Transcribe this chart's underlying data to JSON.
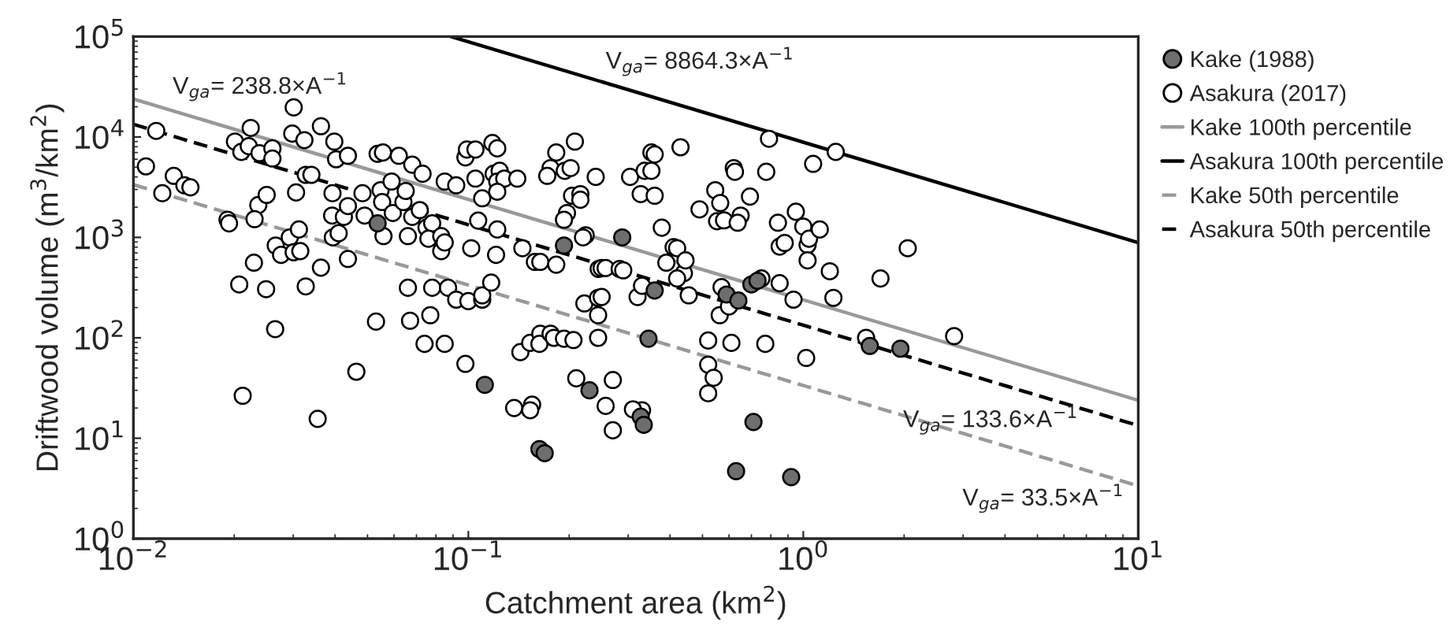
{
  "chart_data": {
    "type": "scatter",
    "xlabel": "Catchment area (km$^{2}$)",
    "ylabel": "Driftwood volume (m$^{3}$/km$^{2}$)",
    "log": "xy",
    "grid": false,
    "legend": "right",
    "xlim": [
      0.01,
      10
    ],
    "ylim": [
      1,
      100000
    ],
    "xticks": [
      {
        "value": 0.01,
        "label": "10$^{−2}$"
      },
      {
        "value": 0.1,
        "label": "10$^{−1}$"
      },
      {
        "value": 1,
        "label": "10$^{0}$"
      },
      {
        "value": 10,
        "label": "10$^{1}$"
      }
    ],
    "yticks": [
      {
        "value": 1,
        "label": "10$^{0}$"
      },
      {
        "value": 10,
        "label": "10$^{1}$"
      },
      {
        "value": 100,
        "label": "10$^{2}$"
      },
      {
        "value": 1000,
        "label": "10$^{3}$"
      },
      {
        "value": 10000,
        "label": "10$^{4}$"
      },
      {
        "value": 100000,
        "label": "10$^{5}$"
      }
    ],
    "series": [
      {
        "name": "Kake (1988)",
        "marker": "circle",
        "color": "#6e6e6e",
        "x": [
          0.0536,
          0.193,
          0.288,
          0.36,
          0.345,
          0.112,
          0.23,
          0.163,
          0.169,
          0.327,
          0.334,
          0.59,
          0.64,
          0.7,
          0.73,
          0.71,
          0.63,
          0.92,
          1.58,
          1.95
        ],
        "values": [
          1380,
          830,
          1000,
          296,
          98,
          34,
          30,
          7.8,
          7.1,
          16.4,
          13.6,
          270,
          235,
          340,
          370,
          14.5,
          4.7,
          4.1,
          83,
          78
        ]
      },
      {
        "name": "Asakura (2017)",
        "marker": "circle",
        "color": "#ffffff",
        "x": [
          0.0117,
          0.0109,
          0.0122,
          0.0132,
          0.0142,
          0.0148,
          0.0191,
          0.0193,
          0.0201,
          0.021,
          0.0224,
          0.0221,
          0.0238,
          0.026,
          0.026,
          0.0236,
          0.023,
          0.025,
          0.0229,
          0.0207,
          0.0249,
          0.0212,
          0.0265,
          0.0266,
          0.0276,
          0.0301,
          0.0298,
          0.0324,
          0.0306,
          0.0293,
          0.0312,
          0.0301,
          0.0315,
          0.0327,
          0.034,
          0.0327,
          0.0363,
          0.0363,
          0.0355,
          0.0398,
          0.0403,
          0.0437,
          0.0393,
          0.0392,
          0.0394,
          0.041,
          0.0425,
          0.0437,
          0.0437,
          0.0463,
          0.0483,
          0.049,
          0.0536,
          0.0547,
          0.0553,
          0.0556,
          0.0558,
          0.059,
          0.0595,
          0.062,
          0.064,
          0.065,
          0.066,
          0.068,
          0.068,
          0.0716,
          0.073,
          0.075,
          0.078,
          0.076,
          0.083,
          0.083,
          0.085,
          0.085,
          0.092,
          0.066,
          0.078,
          0.087,
          0.092,
          0.053,
          0.067,
          0.077,
          0.074,
          0.085,
          0.098,
          0.1,
          0.11,
          0.11,
          0.117,
          0.102,
          0.098,
          0.099,
          0.105,
          0.118,
          0.122,
          0.105,
          0.11,
          0.119,
          0.124,
          0.122,
          0.128,
          0.14,
          0.122,
          0.107,
          0.122,
          0.121,
          0.145,
          0.143,
          0.153,
          0.137,
          0.155,
          0.153,
          0.158,
          0.164,
          0.183,
          0.164,
          0.163,
          0.176,
          0.18,
          0.193,
          0.206,
          0.183,
          0.176,
          0.172,
          0.194,
          0.202,
          0.208,
          0.204,
          0.216,
          0.216,
          0.197,
          0.193,
          0.224,
          0.22,
          0.21,
          0.222,
          0.24,
          0.245,
          0.25,
          0.257,
          0.244,
          0.25,
          0.244,
          0.244,
          0.257,
          0.27,
          0.27,
          0.283,
          0.29,
          0.304,
          0.32,
          0.327,
          0.336,
          0.352,
          0.352,
          0.36,
          0.36,
          0.378,
          0.39,
          0.33,
          0.31,
          0.33,
          0.41,
          0.43,
          0.44,
          0.42,
          0.445,
          0.42,
          0.455,
          0.49,
          0.546,
          0.565,
          0.553,
          0.58,
          0.65,
          0.637,
          0.693,
          0.62,
          0.625,
          0.775,
          0.79,
          0.57,
          0.563,
          0.6,
          0.52,
          0.61,
          0.77,
          0.52,
          0.54,
          0.52,
          0.75,
          0.85,
          0.935,
          0.84,
          0.85,
          0.88,
          0.95,
          1.0,
          1.03,
          1.04,
          1.03,
          1.12,
          1.07,
          1.02,
          1.2,
          1.23,
          1.25,
          1.7,
          2.05,
          1.54,
          2.82
        ],
        "values": [
          11500,
          5100,
          2750,
          4100,
          3300,
          3150,
          1500,
          1380,
          9000,
          7100,
          12300,
          8100,
          6900,
          7700,
          6100,
          2100,
          1520,
          2650,
          560,
          340,
          305,
          26.5,
          122,
          830,
          670,
          19700,
          10800,
          9300,
          2800,
          1000,
          1200,
          710,
          730,
          4200,
          4200,
          325,
          12800,
          500,
          15.6,
          9000,
          6000,
          6500,
          2750,
          1650,
          1000,
          1100,
          1600,
          2050,
          610,
          46,
          2750,
          1650,
          6800,
          2950,
          2250,
          7000,
          1030,
          3600,
          1750,
          6500,
          2250,
          2900,
          1030,
          5300,
          1600,
          1870,
          4300,
          1250,
          1380,
          970,
          1030,
          730,
          890,
          3600,
          3300,
          315,
          315,
          315,
          240,
          145,
          148,
          168,
          87,
          87,
          55,
          232,
          240,
          265,
          355,
          780,
          6260,
          7500,
          7500,
          8700,
          7700,
          3850,
          2450,
          4300,
          4600,
          3600,
          3850,
          3850,
          2850,
          1470,
          1200,
          670,
          780,
          72,
          89,
          20,
          21.6,
          19,
          570,
          570,
          535,
          110,
          87,
          110,
          100,
          98,
          95,
          7000,
          4900,
          4100,
          4600,
          4900,
          9000,
          2600,
          2700,
          2370,
          1750,
          1500,
          1050,
          1000,
          39.5,
          220,
          4000,
          485,
          495,
          495,
          250,
          255,
          168,
          100,
          21,
          38,
          12,
          485,
          470,
          4000,
          255,
          2700,
          4600,
          4600,
          7000,
          6700,
          2600,
          1250,
          560,
          19,
          19.4,
          330,
          800,
          7900,
          440,
          780,
          590,
          390,
          265,
          1900,
          2950,
          2200,
          1450,
          1480,
          1650,
          1400,
          2550,
          4900,
          4500,
          4500,
          9600,
          320,
          168,
          205,
          94,
          89,
          87,
          54,
          40,
          28,
          390,
          350,
          240,
          1400,
          810,
          880,
          1800,
          1280,
          840,
          970,
          590,
          1200,
          5400,
          63,
          460,
          250,
          7100,
          390,
          780,
          100,
          104
        ]
      },
      {
        "name": "Kake 100th percentile",
        "type": "line",
        "line_style": "solid",
        "marker": "none",
        "color": "#999999",
        "x": [
          0.01,
          10
        ],
        "values": [
          23880,
          23.88
        ]
      },
      {
        "name": "Asakura 100th percentile",
        "type": "line",
        "line_style": "solid",
        "marker": "none",
        "color": "#000000",
        "x": [
          0.088643,
          10
        ],
        "values": [
          100000,
          886.43
        ]
      },
      {
        "name": "Kake 50th percentile",
        "type": "line",
        "line_style": "dashed",
        "marker": "none",
        "color": "#999999",
        "x": [
          0.01,
          10
        ],
        "values": [
          3350,
          3.35
        ]
      },
      {
        "name": "Asakura 50th percentile",
        "type": "line",
        "line_style": "dashed",
        "marker": "none",
        "color": "#000000",
        "x": [
          0.01,
          10
        ],
        "values": [
          13360,
          13.36
        ]
      }
    ],
    "annotations": [
      "V$_{ga}$= 238.8×A$^{−1}$",
      "V$_{ga}$= 8864.3×A$^{−1}$",
      "V$_{ga}$= 133.6×A$^{−1}$",
      "V$_{ga}$= 33.5×A$^{−1}$"
    ]
  }
}
